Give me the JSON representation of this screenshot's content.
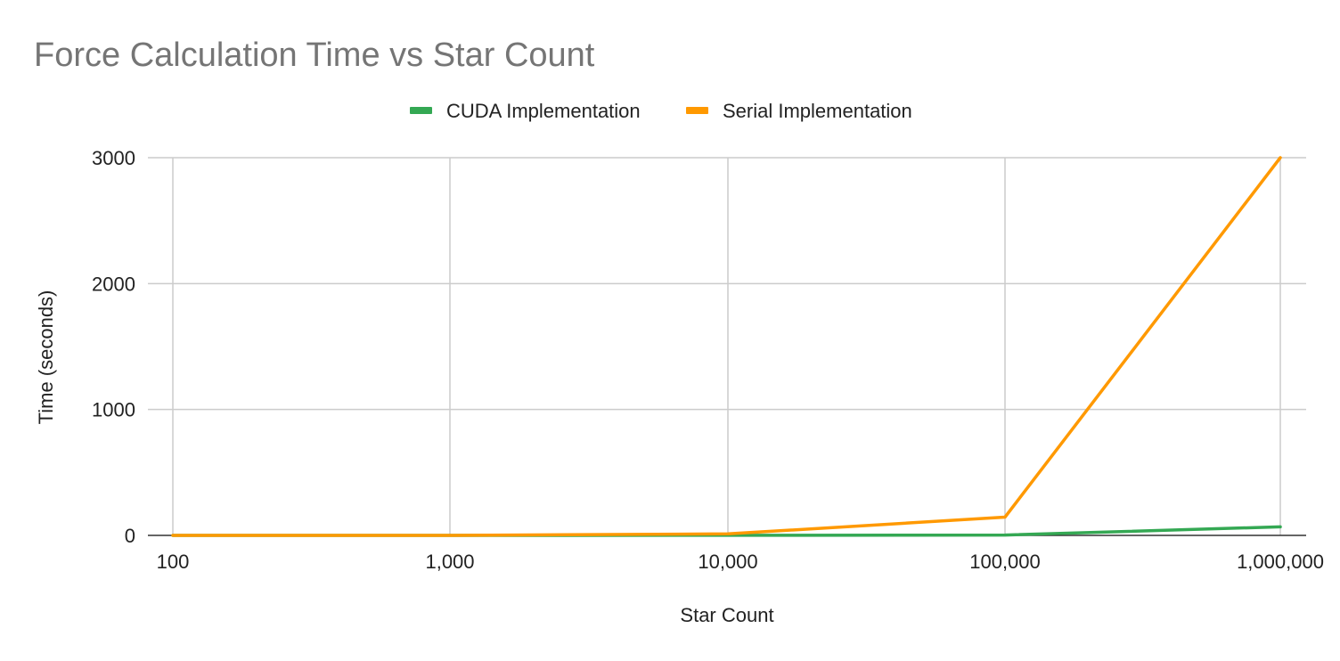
{
  "chart_data": {
    "type": "line",
    "title": "Force Calculation Time vs Star Count",
    "xlabel": "Star Count",
    "ylabel": "Time (seconds)",
    "x": [
      "100",
      "1,000",
      "10,000",
      "100,000",
      "1,000,000"
    ],
    "ylim": [
      0,
      3000
    ],
    "yticks": [
      "0",
      "1000",
      "2000",
      "3000"
    ],
    "yticks_values": [
      0,
      1000,
      2000,
      3000
    ],
    "grid": true,
    "legend_position": "top",
    "series": [
      {
        "name": "CUDA Implementation",
        "color": "#34a853",
        "values": [
          0.01,
          0.05,
          0.5,
          3,
          68
        ]
      },
      {
        "name": "Serial Implementation",
        "color": "#ff9900",
        "values": [
          0.02,
          0.2,
          12,
          145,
          3010
        ]
      }
    ]
  }
}
